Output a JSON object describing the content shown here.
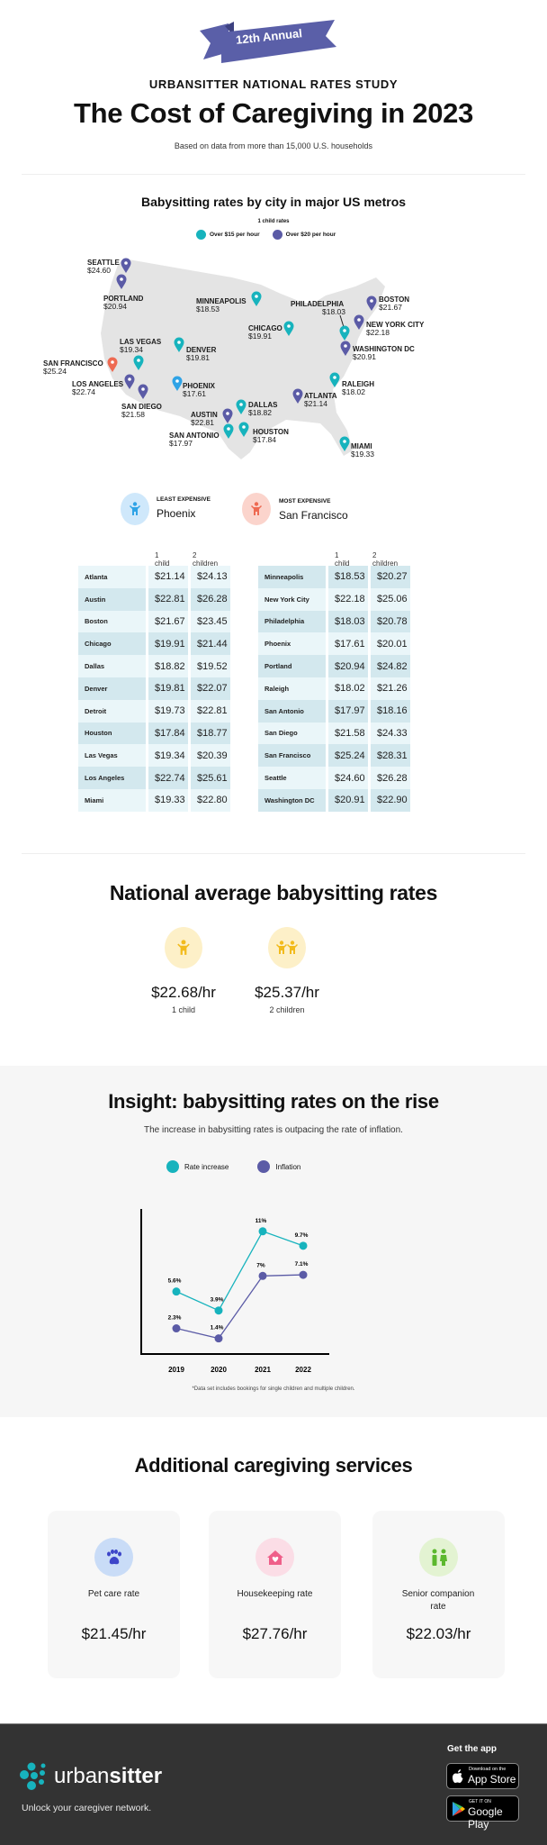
{
  "header": {
    "ribbon": "12th Annual",
    "kicker": "URBANSITTER NATIONAL RATES STUDY",
    "title": "The Cost of Caregiving in 2023",
    "subtitle": "Based on data from more than 15,000 U.S. households"
  },
  "map": {
    "title": "Babysitting rates by city in major US metros",
    "legend_title": "1 child rates",
    "legend": [
      {
        "label": "Over $15 per hour",
        "color": "#17b3bd"
      },
      {
        "label": "Over $20 per hour",
        "color": "#5b5ba6"
      }
    ],
    "colors": {
      "least": "#2fa3e6",
      "most": "#ee6a52",
      "land": "#e4e4e4"
    },
    "pins": [
      {
        "city": "SEATTLE",
        "price": "$24.60",
        "type": "over20"
      },
      {
        "city": "PORTLAND",
        "price": "$20.94",
        "type": "over20"
      },
      {
        "city": "MINNEAPOLIS",
        "price": "$18.53",
        "type": "over15"
      },
      {
        "city": "PHILADELPHIA",
        "price": "$18.03",
        "type": "over15"
      },
      {
        "city": "BOSTON",
        "price": "$21.67",
        "type": "over20"
      },
      {
        "city": "NEW YORK CITY",
        "price": "$22.18",
        "type": "over20"
      },
      {
        "city": "CHICAGO",
        "price": "$19.91",
        "type": "over15"
      },
      {
        "city": "WASHINGTON DC",
        "price": "$20.91",
        "type": "over20"
      },
      {
        "city": "LAS VEGAS",
        "price": "$19.34",
        "type": "over15"
      },
      {
        "city": "DENVER",
        "price": "$19.81",
        "type": "over15"
      },
      {
        "city": "SAN FRANCISCO",
        "price": "$25.24",
        "type": "most"
      },
      {
        "city": "RALEIGH",
        "price": "$18.02",
        "type": "over15"
      },
      {
        "city": "LOS ANGELES",
        "price": "$22.74",
        "type": "over20"
      },
      {
        "city": "PHOENIX",
        "price": "$17.61",
        "type": "least"
      },
      {
        "city": "SAN DIEGO",
        "price": "$21.58",
        "type": "over20"
      },
      {
        "city": "ATLANTA",
        "price": "$21.14",
        "type": "over20"
      },
      {
        "city": "DALLAS",
        "price": "$18.82",
        "type": "over15"
      },
      {
        "city": "AUSTIN",
        "price": "$22.81",
        "type": "over20"
      },
      {
        "city": "SAN ANTONIO",
        "price": "$17.97",
        "type": "over15"
      },
      {
        "city": "HOUSTON",
        "price": "$17.84",
        "type": "over15"
      },
      {
        "city": "MIAMI",
        "price": "$19.33",
        "type": "over15"
      }
    ]
  },
  "extremes": {
    "least": {
      "label": "LEAST EXPENSIVE",
      "city": "Phoenix"
    },
    "most": {
      "label": "MOST EXPENSIVE",
      "city": "San Francisco"
    }
  },
  "tables": {
    "col_1": "1 child",
    "col_2": "2 children",
    "left": [
      [
        "Atlanta",
        "$21.14",
        "$24.13"
      ],
      [
        "Austin",
        "$22.81",
        "$26.28"
      ],
      [
        "Boston",
        "$21.67",
        "$23.45"
      ],
      [
        "Chicago",
        "$19.91",
        "$21.44"
      ],
      [
        "Dallas",
        "$18.82",
        "$19.52"
      ],
      [
        "Denver",
        "$19.81",
        "$22.07"
      ],
      [
        "Detroit",
        "$19.73",
        "$22.81"
      ],
      [
        "Houston",
        "$17.84",
        "$18.77"
      ],
      [
        "Las Vegas",
        "$19.34",
        "$20.39"
      ],
      [
        "Los Angeles",
        "$22.74",
        "$25.61"
      ],
      [
        "Miami",
        "$19.33",
        "$22.80"
      ]
    ],
    "right": [
      [
        "Minneapolis",
        "$18.53",
        "$20.27"
      ],
      [
        "New York City",
        "$22.18",
        "$25.06"
      ],
      [
        "Philadelphia",
        "$18.03",
        "$20.78"
      ],
      [
        "Phoenix",
        "$17.61",
        "$20.01"
      ],
      [
        "Portland",
        "$20.94",
        "$24.82"
      ],
      [
        "Raleigh",
        "$18.02",
        "$21.26"
      ],
      [
        "San Antonio",
        "$17.97",
        "$18.16"
      ],
      [
        "San Diego",
        "$21.58",
        "$24.33"
      ],
      [
        "San Francisco",
        "$25.24",
        "$28.31"
      ],
      [
        "Seattle",
        "$24.60",
        "$26.28"
      ],
      [
        "Washington DC",
        "$20.91",
        "$22.90"
      ]
    ]
  },
  "national": {
    "title": "National average babysitting rates",
    "items": [
      {
        "value": "$22.68/hr",
        "label": "1 child"
      },
      {
        "value": "$25.37/hr",
        "label": "2 children"
      }
    ]
  },
  "insight": {
    "title": "Insight: babysitting rates on the rise",
    "subtitle": "The increase in babysitting rates is outpacing the rate of inflation.",
    "footnote": "*Data set includes bookings for single children and multiple children."
  },
  "chart_data": {
    "type": "line",
    "categories": [
      "2019",
      "2020",
      "2021",
      "2022"
    ],
    "series": [
      {
        "name": "Rate increase",
        "color": "#17b3bd",
        "values": [
          5.6,
          3.9,
          11,
          9.7
        ],
        "labels": [
          "5.6%",
          "3.9%",
          "11%",
          "9.7%"
        ]
      },
      {
        "name": "Inflation",
        "color": "#5b5ba6",
        "values": [
          2.3,
          1.4,
          7,
          7.1
        ],
        "labels": [
          "2.3%",
          "1.4%",
          "7%",
          "7.1%"
        ]
      }
    ],
    "ylim": [
      0,
      13
    ],
    "grid": false,
    "legend": "top"
  },
  "services": {
    "title": "Additional caregiving services",
    "items": [
      {
        "label": "Pet care rate",
        "value": "$21.45/hr",
        "icon": "paw-icon",
        "bg": "#c9dcf7",
        "fg": "#3d45c9"
      },
      {
        "label": "Housekeeping rate",
        "value": "$27.76/hr",
        "icon": "house-heart-icon",
        "bg": "#fbdde6",
        "fg": "#ef5f8a"
      },
      {
        "label": "Senior companion rate",
        "value": "$22.03/hr",
        "icon": "people-icon",
        "bg": "#e3f3d2",
        "fg": "#5cb82e"
      }
    ]
  },
  "footer": {
    "logo_a": "urban",
    "logo_b": "sitter",
    "tagline": "Unlock your caregiver network.",
    "get_app": "Get the app",
    "app_store_small": "Download on the",
    "app_store": "App Store",
    "google_small": "GET IT ON",
    "google": "Google Play"
  }
}
